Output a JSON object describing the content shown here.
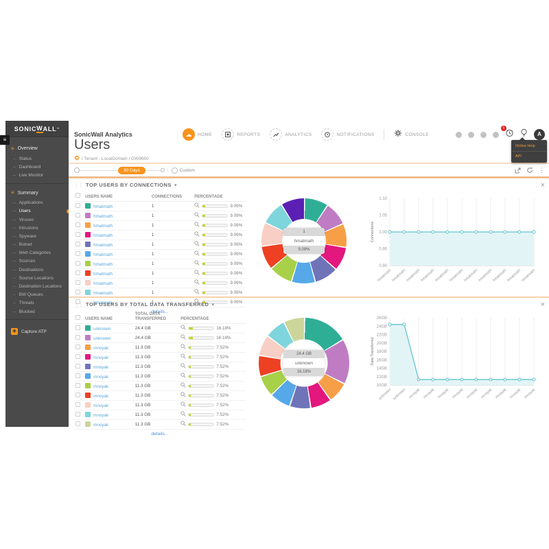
{
  "colors": {
    "accent": "#f7941d",
    "line": "#62c4cf",
    "line_fill": "#e3f4f6",
    "bar_fill": "#c8d419"
  },
  "brand": {
    "logo_pre": "SONIC",
    "logo_accent": "W",
    "logo_post": "ALL",
    "tm": "™"
  },
  "sidebar": {
    "sections": [
      {
        "label": "Overview",
        "items": [
          {
            "label": "Status",
            "active": false
          },
          {
            "label": "Dashboard",
            "active": false
          },
          {
            "label": "Live Monitor",
            "active": false
          }
        ]
      },
      {
        "label": "Summary",
        "items": [
          {
            "label": "Applications",
            "active": false
          },
          {
            "label": "Users",
            "active": true
          },
          {
            "label": "Viruses",
            "active": false
          },
          {
            "label": "Intrusions",
            "active": false
          },
          {
            "label": "Spyware",
            "active": false
          },
          {
            "label": "Botnet",
            "active": false
          },
          {
            "label": "Web Categories",
            "active": false
          },
          {
            "label": "Sources",
            "active": false
          },
          {
            "label": "Destinations",
            "active": false
          },
          {
            "label": "Source Locations",
            "active": false
          },
          {
            "label": "Destination Locations",
            "active": false
          },
          {
            "label": "BW Queues",
            "active": false
          },
          {
            "label": "Threats",
            "active": false
          },
          {
            "label": "Blocked",
            "active": false
          }
        ]
      }
    ],
    "footer": "Capture ATP"
  },
  "topbar": {
    "app_title": "SonicWall Analytics",
    "nav": [
      {
        "label": "HOME",
        "icon": "cloud-icon",
        "active": true
      },
      {
        "label": "REPORTS",
        "icon": "report-icon",
        "active": false
      },
      {
        "label": "ANALYTICS",
        "icon": "trend-icon",
        "active": false
      },
      {
        "label": "NOTIFICATIONS",
        "icon": "clock-icon",
        "active": false
      },
      {
        "label": "CONSOLE",
        "icon": "gear-icon",
        "active": false
      }
    ],
    "badge_count": "6",
    "avatar": "A",
    "help_menu": [
      "Online Help",
      "API"
    ]
  },
  "page": {
    "title": "Users",
    "breadcrumb": "/ Tenant - LocalDomain / GW9650"
  },
  "filter": {
    "range_label": "30 Days",
    "custom_label": "Custom"
  },
  "sections": [
    {
      "title": "TOP USERS BY CONNECTIONS",
      "columns": [
        "USERS NAME",
        "CONNECTIONS",
        "PERCENTAGE"
      ],
      "details_label": "details...",
      "donut_chart": 0,
      "line_chart": 1,
      "rows": [
        {
          "user": "hmatmath",
          "swatch": "#2fae96",
          "value": "1",
          "pct": "9.09%",
          "pct_num": 9.09
        },
        {
          "user": "hmatmath",
          "swatch": "#bf7cc3",
          "value": "1",
          "pct": "9.09%",
          "pct_num": 9.09
        },
        {
          "user": "hmatmath",
          "swatch": "#f79f47",
          "value": "1",
          "pct": "9.09%",
          "pct_num": 9.09
        },
        {
          "user": "hmatmath",
          "swatch": "#e4177e",
          "value": "1",
          "pct": "9.09%",
          "pct_num": 9.09
        },
        {
          "user": "hmatmath",
          "swatch": "#6f74b8",
          "value": "1",
          "pct": "9.09%",
          "pct_num": 9.09
        },
        {
          "user": "hmatmath",
          "swatch": "#56a8e8",
          "value": "1",
          "pct": "9.09%",
          "pct_num": 9.09
        },
        {
          "user": "hmatmath",
          "swatch": "#a8d049",
          "value": "1",
          "pct": "9.09%",
          "pct_num": 9.09
        },
        {
          "user": "hmatmath",
          "swatch": "#ee4023",
          "value": "1",
          "pct": "9.09%",
          "pct_num": 9.09
        },
        {
          "user": "hmatmath",
          "swatch": "#f8cfc4",
          "value": "1",
          "pct": "9.09%",
          "pct_num": 9.09
        },
        {
          "user": "hmatmath",
          "swatch": "#7ed5dc",
          "value": "1",
          "pct": "9.09%",
          "pct_num": 9.09
        },
        {
          "user": "hmatmath",
          "swatch": "",
          "value": "1",
          "pct": "9.09%",
          "pct_num": 9.09
        }
      ]
    },
    {
      "title": "TOP USERS BY TOTAL DATA TRANSFERRED",
      "columns": [
        "USERS NAME",
        "TOTAL DATA TRANSFERRED",
        "PERCENTAGE"
      ],
      "details_label": "details...",
      "donut_chart": 2,
      "line_chart": 3,
      "rows": [
        {
          "user": "unknown",
          "swatch": "#2fae96",
          "value": "24.4 GB",
          "pct": "16.18%",
          "pct_num": 16.18
        },
        {
          "user": "unknown",
          "swatch": "#bf7cc3",
          "value": "24.4 GB",
          "pct": "16.18%",
          "pct_num": 16.18
        },
        {
          "user": "mnoyak",
          "swatch": "#f79f47",
          "value": "11.3 GB",
          "pct": "7.52%",
          "pct_num": 7.52
        },
        {
          "user": "mnoyak",
          "swatch": "#e4177e",
          "value": "11.3 GB",
          "pct": "7.52%",
          "pct_num": 7.52
        },
        {
          "user": "mnoyak",
          "swatch": "#6f74b8",
          "value": "11.3 GB",
          "pct": "7.52%",
          "pct_num": 7.52
        },
        {
          "user": "mnoyak",
          "swatch": "#56a8e8",
          "value": "11.3 GB",
          "pct": "7.52%",
          "pct_num": 7.52
        },
        {
          "user": "mnoyak",
          "swatch": "#a8d049",
          "value": "11.3 GB",
          "pct": "7.52%",
          "pct_num": 7.52
        },
        {
          "user": "mnoyak",
          "swatch": "#ee4023",
          "value": "11.3 GB",
          "pct": "7.52%",
          "pct_num": 7.52
        },
        {
          "user": "mnoyak",
          "swatch": "#f8cfc4",
          "value": "11.3 GB",
          "pct": "7.52%",
          "pct_num": 7.52
        },
        {
          "user": "mnoyak",
          "swatch": "#7ed5dc",
          "value": "11.3 GB",
          "pct": "7.52%",
          "pct_num": 7.52
        },
        {
          "user": "mnoyak",
          "swatch": "#cbd59a",
          "value": "11.3 GB",
          "pct": "7.52%",
          "pct_num": 7.52
        }
      ]
    }
  ],
  "chart_data": [
    {
      "id": "donut-connections",
      "type": "pie",
      "labels": [
        "hmatmath",
        "hmatmath",
        "hmatmath",
        "hmatmath",
        "hmatmath",
        "hmatmath",
        "hmatmath",
        "hmatmath",
        "hmatmath",
        "hmatmath",
        "hmatmath"
      ],
      "values": [
        9.09,
        9.09,
        9.09,
        9.09,
        9.09,
        9.09,
        9.09,
        9.09,
        9.09,
        9.09,
        9.09
      ],
      "colors": [
        "#2fae96",
        "#bf7cc3",
        "#f79f47",
        "#e4177e",
        "#6f74b8",
        "#56a8e8",
        "#a8d049",
        "#ee4023",
        "#f8cfc4",
        "#7ed5dc",
        "#5b1fb4"
      ],
      "center": {
        "top": "1",
        "middle": "hmatmath",
        "bottom": "9.09%"
      },
      "size": 124
    },
    {
      "id": "line-connections",
      "type": "area",
      "ylabel": "Connections",
      "ylim": [
        0.9,
        1.1
      ],
      "x": [
        "hmatmath",
        "hmatmath",
        "hmatmath",
        "hmatmath",
        "hmatmath",
        "hmatmath",
        "hmatmath",
        "hmatmath",
        "hmatmath",
        "hmatmath",
        "hmatmath"
      ],
      "values": [
        1,
        1,
        1,
        1,
        1,
        1,
        1,
        1,
        1,
        1,
        1
      ],
      "yticks": [
        {
          "value": 1.1,
          "label": "1.10"
        },
        {
          "value": 1.05,
          "label": "1.05"
        },
        {
          "value": 1.0,
          "label": "1.00"
        },
        {
          "value": 0.95,
          "label": "0.95"
        },
        {
          "value": 0.9,
          "label": "0.90"
        }
      ],
      "grid": "vertical",
      "legend": "none"
    },
    {
      "id": "donut-data-transferred",
      "type": "pie",
      "labels": [
        "unknown",
        "unknown",
        "mnoyak",
        "mnoyak",
        "mnoyak",
        "mnoyak",
        "mnoyak",
        "mnoyak",
        "mnoyak",
        "mnoyak",
        "mnoyak"
      ],
      "values": [
        16.18,
        16.18,
        7.52,
        7.52,
        7.52,
        7.52,
        7.52,
        7.52,
        7.52,
        7.52,
        7.52
      ],
      "colors": [
        "#2fae96",
        "#bf7cc3",
        "#f79f47",
        "#e4177e",
        "#6f74b8",
        "#56a8e8",
        "#a8d049",
        "#ee4023",
        "#f8cfc4",
        "#7ed5dc",
        "#cbd59a"
      ],
      "center": {
        "top": "24.4 GB",
        "middle": "unknown",
        "bottom": "16.18%"
      },
      "size": 132
    },
    {
      "id": "line-data-transferred",
      "type": "area",
      "ylabel": "Data Transferred",
      "ylim": [
        10,
        26
      ],
      "x": [
        "unknown",
        "unknown",
        "mnoyak",
        "mnoyak",
        "mnoyak",
        "mnoyak",
        "mnoyak",
        "mnoyak",
        "mnoyak",
        "mnoyak",
        "mnoyak"
      ],
      "values": [
        24.4,
        24.4,
        11.3,
        11.3,
        11.3,
        11.3,
        11.3,
        11.3,
        11.3,
        11.3,
        11.3
      ],
      "yticks": [
        {
          "value": 26,
          "label": "26GB"
        },
        {
          "value": 24,
          "label": "24GB"
        },
        {
          "value": 22,
          "label": "22GB"
        },
        {
          "value": 20,
          "label": "20GB"
        },
        {
          "value": 18,
          "label": "18GB"
        },
        {
          "value": 16,
          "label": "16GB"
        },
        {
          "value": 14,
          "label": "14GB"
        },
        {
          "value": 12,
          "label": "12GB"
        },
        {
          "value": 10,
          "label": "10GB"
        }
      ],
      "grid": "vertical",
      "legend": "none"
    }
  ]
}
